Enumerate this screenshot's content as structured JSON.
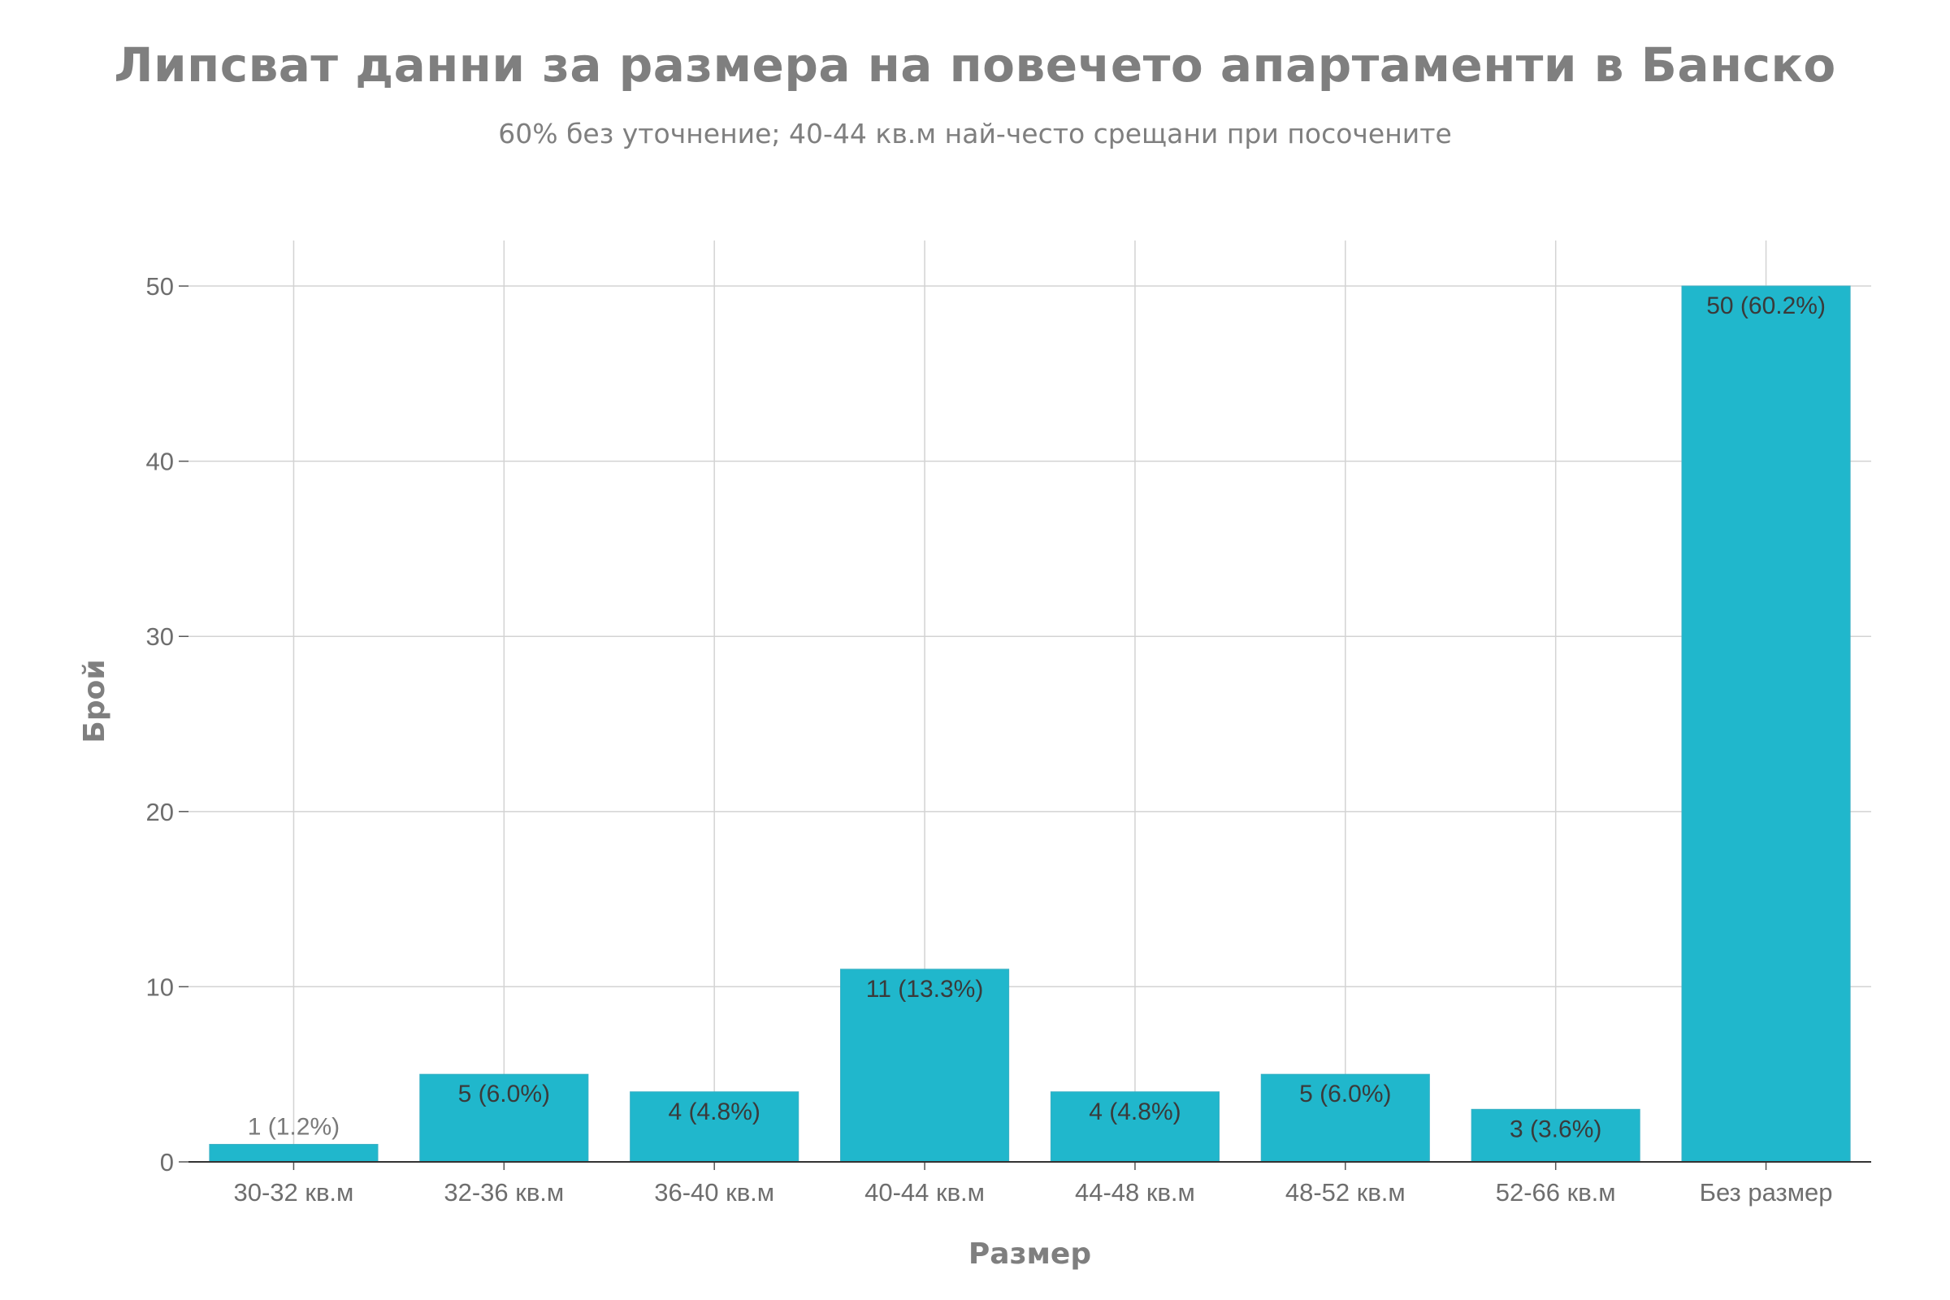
{
  "chart_data": {
    "type": "bar",
    "title": "Липсват данни за размера на повечето апартаменти в Банско",
    "subtitle": "60% без уточнение; 40-44 кв.м най-често срещани при посочените",
    "xlabel": "Размер",
    "ylabel": "Брой",
    "categories": [
      "30-32 кв.м",
      "32-36 кв.м",
      "36-40 кв.м",
      "40-44 кв.м",
      "44-48 кв.м",
      "48-52 кв.м",
      "52-66 кв.м",
      "Без размер"
    ],
    "values": [
      1,
      5,
      4,
      11,
      4,
      5,
      3,
      50
    ],
    "data_labels": [
      "1 (1.2%)",
      "5 (6.0%)",
      "4 (4.8%)",
      "11 (13.3%)",
      "4 (4.8%)",
      "5 (6.0%)",
      "3 (3.6%)",
      "50 (60.2%)"
    ],
    "ylim": [
      0,
      52.6
    ],
    "yticks": [
      0,
      10,
      20,
      30,
      40,
      50
    ],
    "grid": true,
    "colors": {
      "bar": "#20b7cc",
      "bar_edge": "#3ab0c4",
      "grid": "#d3d3d3",
      "axis": "#333333",
      "label_inside": "#3a3a3a",
      "label_outside": "#7a7a7a",
      "text": "#7f7f7f"
    }
  }
}
